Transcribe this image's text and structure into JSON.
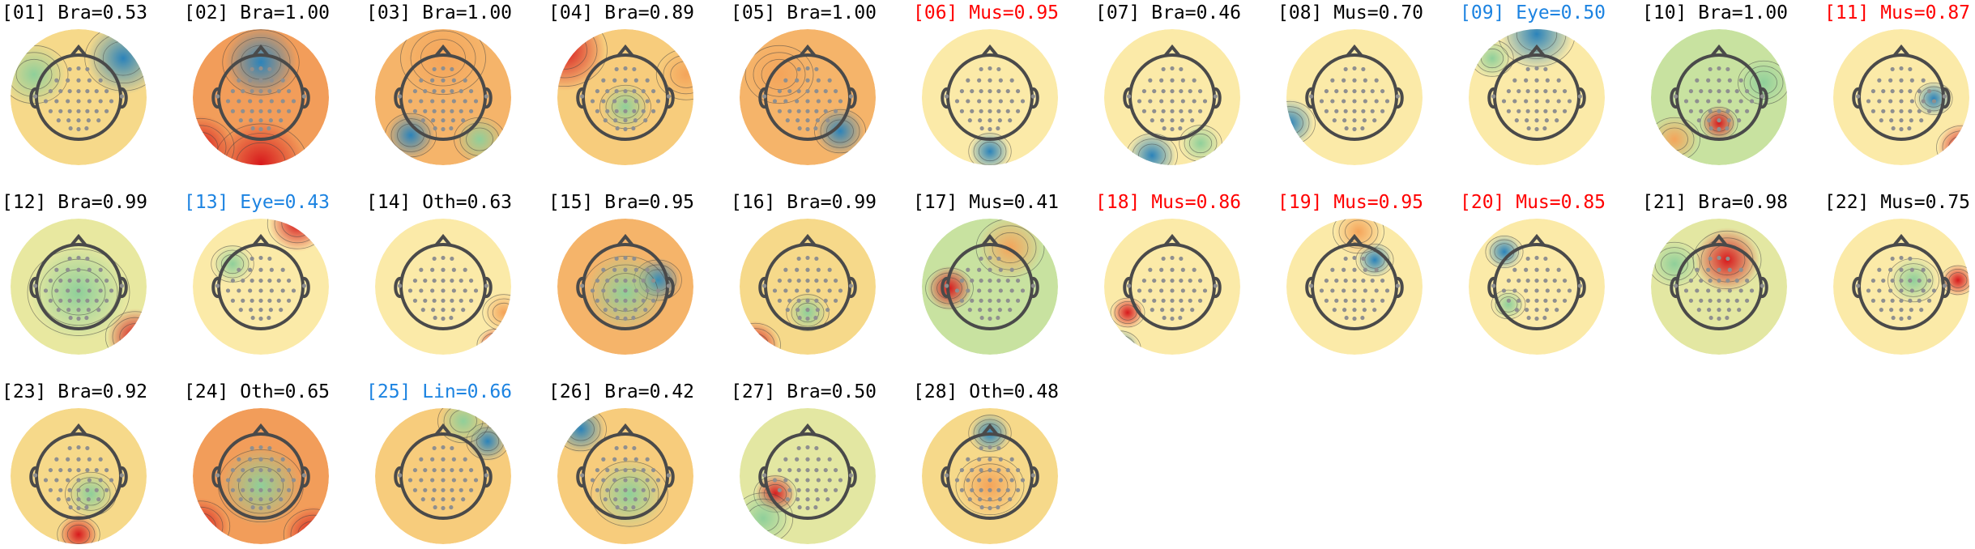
{
  "colors": {
    "label_default": "#000000",
    "label_muscle": "#ff0000",
    "label_eye_line": "#1c83e1",
    "map_neutral": "#fbeaa8",
    "map_hot": "#d7191c",
    "map_warm": "#f4a45a",
    "map_cool": "#2b83ba",
    "map_green": "#8fcf9a",
    "head_outline": "#4a4a4a",
    "electrode": "#8f8f8f"
  },
  "components": [
    {
      "label": "[01] Bra=0.53",
      "color": "label_default",
      "icon": "scalp-topomap-icon"
    },
    {
      "label": "[02] Bra=1.00",
      "color": "label_default",
      "icon": "scalp-topomap-icon"
    },
    {
      "label": "[03] Bra=1.00",
      "color": "label_default",
      "icon": "scalp-topomap-icon"
    },
    {
      "label": "[04] Bra=0.89",
      "color": "label_default",
      "icon": "scalp-topomap-icon"
    },
    {
      "label": "[05] Bra=1.00",
      "color": "label_default",
      "icon": "scalp-topomap-icon"
    },
    {
      "label": "[06] Mus=0.95",
      "color": "label_muscle",
      "icon": "scalp-topomap-icon"
    },
    {
      "label": "[07] Bra=0.46",
      "color": "label_default",
      "icon": "scalp-topomap-icon"
    },
    {
      "label": "[08] Mus=0.70",
      "color": "label_default",
      "icon": "scalp-topomap-icon"
    },
    {
      "label": "[09] Eye=0.50",
      "color": "label_eye_line",
      "icon": "scalp-topomap-icon"
    },
    {
      "label": "[10] Bra=1.00",
      "color": "label_default",
      "icon": "scalp-topomap-icon"
    },
    {
      "label": "[11] Mus=0.87",
      "color": "label_muscle",
      "icon": "scalp-topomap-icon"
    },
    {
      "label": "[12] Bra=0.99",
      "color": "label_default",
      "icon": "scalp-topomap-icon"
    },
    {
      "label": "[13] Eye=0.43",
      "color": "label_eye_line",
      "icon": "scalp-topomap-icon"
    },
    {
      "label": "[14] Oth=0.63",
      "color": "label_default",
      "icon": "scalp-topomap-icon"
    },
    {
      "label": "[15] Bra=0.95",
      "color": "label_default",
      "icon": "scalp-topomap-icon"
    },
    {
      "label": "[16] Bra=0.99",
      "color": "label_default",
      "icon": "scalp-topomap-icon"
    },
    {
      "label": "[17] Mus=0.41",
      "color": "label_default",
      "icon": "scalp-topomap-icon"
    },
    {
      "label": "[18] Mus=0.86",
      "color": "label_muscle",
      "icon": "scalp-topomap-icon"
    },
    {
      "label": "[19] Mus=0.95",
      "color": "label_muscle",
      "icon": "scalp-topomap-icon"
    },
    {
      "label": "[20] Mus=0.85",
      "color": "label_muscle",
      "icon": "scalp-topomap-icon"
    },
    {
      "label": "[21] Bra=0.98",
      "color": "label_default",
      "icon": "scalp-topomap-icon"
    },
    {
      "label": "[22] Mus=0.75",
      "color": "label_default",
      "icon": "scalp-topomap-icon"
    },
    {
      "label": "[23] Bra=0.92",
      "color": "label_default",
      "icon": "scalp-topomap-icon"
    },
    {
      "label": "[24] Oth=0.65",
      "color": "label_default",
      "icon": "scalp-topomap-icon"
    },
    {
      "label": "[25] Lin=0.66",
      "color": "label_eye_line",
      "icon": "scalp-topomap-icon"
    },
    {
      "label": "[26] Bra=0.42",
      "color": "label_default",
      "icon": "scalp-topomap-icon"
    },
    {
      "label": "[27] Bra=0.50",
      "color": "label_default",
      "icon": "scalp-topomap-icon"
    },
    {
      "label": "[28] Oth=0.48",
      "color": "label_default",
      "icon": "scalp-topomap-icon"
    }
  ]
}
